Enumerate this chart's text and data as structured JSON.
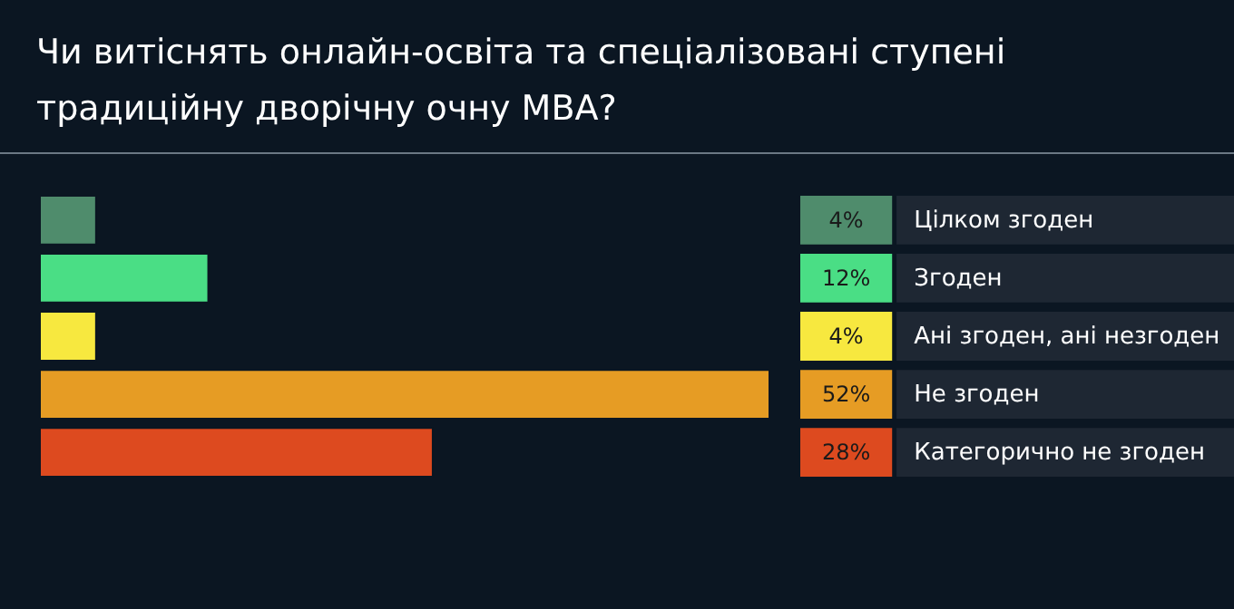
{
  "chart_data": {
    "type": "bar",
    "orientation": "horizontal",
    "title": "Чи витіснять онлайн-освіта та спеціалізовані ступені традиційну дворічну очну MBA?",
    "categories": [
      "Цілком згоден",
      "Згоден",
      "Ані згоден, ані незгоден",
      "Не згоден",
      "Категорично не згоден"
    ],
    "values": [
      4,
      12,
      4,
      52,
      28
    ],
    "colors": [
      "#4f8c6c",
      "#4ade85",
      "#f7e83f",
      "#e69c24",
      "#dd4a1f"
    ],
    "value_labels": [
      "4%",
      "12%",
      "4%",
      "52%",
      "28%"
    ]
  }
}
